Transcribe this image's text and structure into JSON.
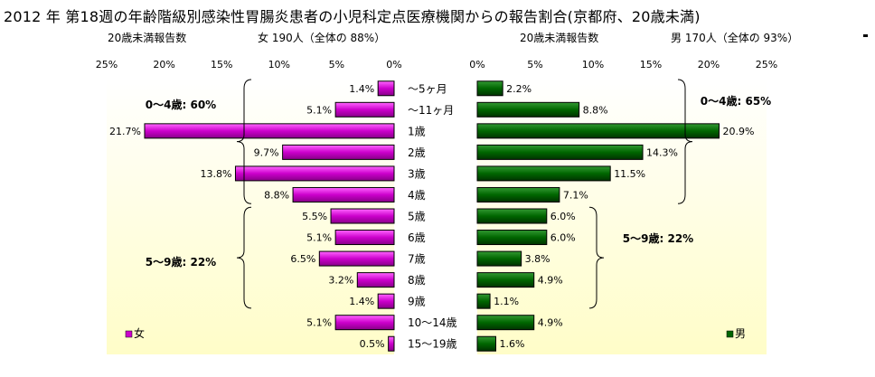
{
  "title": "2012 年 第18週の年齢階級別感染性胃腸炎患者の小児科定点医療機関からの報告割合(京都府、20歳未満)",
  "left_header": {
    "label": "20歳未満報告数",
    "summary": "女 190人（全体の 88%）"
  },
  "right_header": {
    "label": "20歳未満報告数",
    "summary": "男 170人（全体の 93%）"
  },
  "chart_data": [
    {
      "type": "bar",
      "orientation": "horizontal",
      "direction": "right-to-left",
      "categories": [
        "〜5ヶ月",
        "〜11ヶ月",
        "1歳",
        "2歳",
        "3歳",
        "4歳",
        "5歳",
        "6歳",
        "7歳",
        "8歳",
        "9歳",
        "10〜14歳",
        "15〜19歳"
      ],
      "series": [
        {
          "name": "女",
          "values": [
            1.4,
            5.1,
            21.7,
            9.7,
            13.8,
            8.8,
            5.5,
            5.1,
            6.5,
            3.2,
            1.4,
            5.1,
            0.5
          ]
        }
      ],
      "data_labels": [
        "1.4%",
        "5.1%",
        "21.7%",
        "9.7%",
        "13.8%",
        "8.8%",
        "5.5%",
        "5.1%",
        "6.5%",
        "3.2%",
        "1.4%",
        "5.1%",
        "0.5%"
      ],
      "xlim": [
        0,
        25
      ],
      "xticks": [
        "25%",
        "20%",
        "15%",
        "10%",
        "5%",
        "0%"
      ],
      "legend": "bottom-left",
      "group_annotations": [
        "0〜4歳: 60%",
        "5〜9歳: 22%"
      ],
      "color": "#cc00cc"
    },
    {
      "type": "bar",
      "orientation": "horizontal",
      "direction": "left-to-right",
      "categories": [
        "〜5ヶ月",
        "〜11ヶ月",
        "1歳",
        "2歳",
        "3歳",
        "4歳",
        "5歳",
        "6歳",
        "7歳",
        "8歳",
        "9歳",
        "10〜14歳",
        "15〜19歳"
      ],
      "series": [
        {
          "name": "男",
          "values": [
            2.2,
            8.8,
            20.9,
            14.3,
            11.5,
            7.1,
            6.0,
            6.0,
            3.8,
            4.9,
            1.1,
            4.9,
            1.6
          ]
        }
      ],
      "data_labels": [
        "2.2%",
        "8.8%",
        "20.9%",
        "14.3%",
        "11.5%",
        "7.1%",
        "6.0%",
        "6.0%",
        "3.8%",
        "4.9%",
        "1.1%",
        "4.9%",
        "1.6%"
      ],
      "xlim": [
        0,
        25
      ],
      "xticks": [
        "0%",
        "5%",
        "10%",
        "15%",
        "20%",
        "25%"
      ],
      "legend": "bottom-right",
      "group_annotations": [
        "0〜4歳: 65%",
        "5〜9歳: 22%"
      ],
      "color": "#006600"
    }
  ]
}
